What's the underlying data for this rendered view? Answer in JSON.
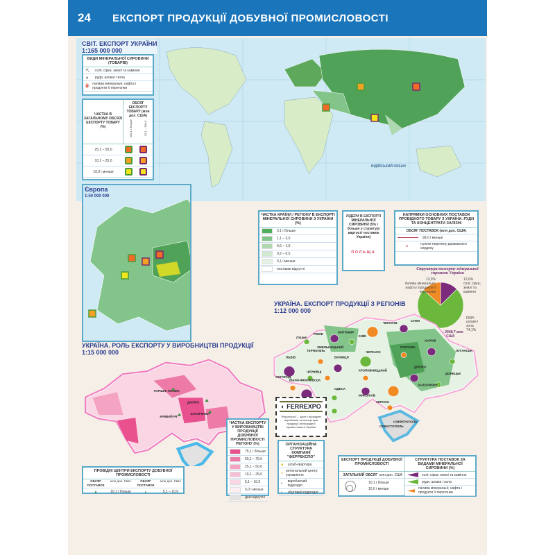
{
  "header": {
    "page_number": "24",
    "title": "ЕКСПОРТ ПРОДУКЦІЇ ДОБУВНОЇ ПРОМИСЛОВОСТІ"
  },
  "world_map": {
    "title": "СВІТ. ЕКСПОРТ УКРАЇНИ",
    "scale": "1:165 000 000",
    "ocean_label": "ІНДІЙСЬКИЙ ОКЕАН",
    "legend_types": {
      "title": "ВИДИ МІНЕРАЛЬНОЇ СИРОВИНИ (ТОВАРІВ)",
      "items": [
        "солі; сірка; землі та каміння",
        "руди, шлаки і зола",
        "палива мінеральні; нафта і продукти її перегонки"
      ]
    },
    "legend_share": {
      "title": "ЧАСТКА В ЗАГАЛЬНОМУ ОБСЯЗІ ЕКСПОРТУ ТОВАРУ (%)",
      "volume_title": "ОБСЯГ ЕКСПОРТУ ТОВАРУ (млн дол. США)",
      "volume_cols": [
        "100,1 і більше",
        "10,1 – 100,0"
      ],
      "rows": [
        "25,1 – 50,0",
        "10,1 – 25,0",
        "10,0 і менше"
      ],
      "colors": [
        "#f06a28",
        "#f5a023",
        "#f3e61c"
      ],
      "border_colors": [
        "#4a9a3a",
        "#7a2a6a"
      ]
    }
  },
  "europe_map": {
    "title": "Європа",
    "scale": "1:50 000 000"
  },
  "legend_country_share": {
    "title": "ЧАСТКА КРАЇНИ / РЕГІОНУ В ЕКСПОРТІ МІНЕРАЛЬНОЇ СИРОВИНИ З УКРАЇНИ (%)",
    "items": [
      {
        "label": "3,1 і більше",
        "color": "#4fae5c"
      },
      {
        "label": "1,1 – 3,0",
        "color": "#82c48a"
      },
      {
        "label": "0,6 – 1,0",
        "color": "#aed8b0"
      },
      {
        "label": "0,2 – 0,5",
        "color": "#cfe8cf"
      },
      {
        "label": "0,1 і менше",
        "color": "#e6f3e4"
      },
      {
        "label": "поставки відсутні",
        "color": "#ffffff"
      }
    ]
  },
  "legend_leaders": {
    "title": "ЛІДЕРИ В ЕКСПОРТІ МІНЕРАЛЬНОЇ СИРОВИНИ (5% і більше у структурі вартості поставок України)",
    "example": "ПОЛЬЩА"
  },
  "legend_directions": {
    "title": "НАПРЯМКИ ОСНОВНИХ ПОСТАВОК ПРОВІДНОГО ТОВАРУ З УКРАЇНИ. РУДИ ТА КОНЦЕНТРАТИ ЗАЛІЗНІ",
    "volume_title": "ОБСЯГ ПОСТАВОК (млн дол. США)",
    "items": [
      "99,0 і менше",
      "пункти перетину державного кордону"
    ]
  },
  "chart_data": {
    "type": "pie",
    "title": "Структура експорту мінеральної сировини України",
    "total": "всього – 2548,7 млн дол. США",
    "slices": [
      {
        "label": "руди, шлаки і зола",
        "value": 74.1,
        "value_label": "74,1%",
        "color": "#6cb83c"
      },
      {
        "label": "солі; сірка; землі та каміння",
        "value": 12.6,
        "value_label": "12,6%",
        "color": "#7b2a7c"
      },
      {
        "label": "палива мінеральні; нафта і продукти її перегонки",
        "value": 13.3,
        "value_label": "13,3%",
        "color": "#f08a24"
      }
    ]
  },
  "ukraine_regions_map": {
    "title": "УКРАЇНА. ЕКСПОРТ ПРОДУКЦІЇ З РЕГІОНІВ",
    "scale": "1:12 000 000",
    "cities": [
      "ЛУЦЬК",
      "РІВНЕ",
      "ЖИТОМИР",
      "КИЇВ",
      "ЧЕРНІГІВ",
      "СУМИ",
      "ЛЬВІВ",
      "ТЕРНОПІЛЬ",
      "ХМЕЛЬНИЦЬКИЙ",
      "ВІННИЦЯ",
      "ЧЕРКАСИ",
      "ПОЛТАВА",
      "ХАРКІВ",
      "ЛУГАНСЬК",
      "УЖГОРОД",
      "ІВАНО-ФРАНКІВСЬК",
      "ЧЕРНІВЦІ",
      "КРОПИВНИЦЬКИЙ",
      "ДНІПРО",
      "ДОНЕЦЬК",
      "ЗАПОРІЖЖЯ",
      "МИКОЛАЇВ",
      "ОДЕСА",
      "ХЕРСОН",
      "СІМФЕРОПОЛЬ",
      "СЕВАСТОПОЛЬ"
    ]
  },
  "ferrexpo": {
    "logo": "FERREXPO",
    "text": "\"Феррекспо\" – один з провідних виробників та експортерів продукції залізорудної промисловості України"
  },
  "org_structure": {
    "title": "ОРГАНІЗАЦІЙНА СТРУКТУРА КОМПАНІЇ \"ФЕРРЕКСПО\"",
    "items": [
      "штаб-квартира",
      "регіональний центр управління",
      "виробничий підрозділ",
      "збутовий підрозділ"
    ]
  },
  "legend_export_volume": {
    "title": "ЕКСПОРТ ПРОДУКЦІЇ ДОБУВНОЇ ПРОМИСЛОВОСТІ",
    "total_label": "ЗАГАЛЬНИЙ ОБСЯГ",
    "unit": "млн дол. США",
    "items": [
      "10,1 і більше",
      "10,0 і менше"
    ]
  },
  "legend_supply_structure": {
    "title": "СТРУКТУРА ПОСТАВОК ЗА ВИДАМИ МІНЕРАЛЬНОЇ СИРОВИНИ (%)",
    "items": [
      {
        "label": "солі; сірка; землі та каміння",
        "color": "#7b2a7c"
      },
      {
        "label": "руди, шлаки і зола",
        "color": "#6cb83c"
      },
      {
        "label": "палива мінеральні; нафта і продукти її перегонки",
        "color": "#f08a24"
      }
    ]
  },
  "ukraine_role_map": {
    "title": "УКРАЇНА. РОЛЬ ЕКСПОРТУ У ВИРОБНИЦТВІ ПРОДУКЦІЇ",
    "scale": "1:15 000 000",
    "cities": [
      "ГОРІШНІ ПЛАВНІ",
      "ДНІПРО",
      "КРИВИЙ РІГ",
      "ЗАПОРІЖЖЯ"
    ]
  },
  "legend_production_share": {
    "title": "ЧАСТКА ЕКСПОРТУ У ВИРОБНИЦТВІ ПРОДУКЦІЇ ДОБУВНОЇ ПРОМИСЛОВОСТІ РЕГІОНУ (%)",
    "items": [
      {
        "label": "75,1 і більше",
        "color": "#e8508e"
      },
      {
        "label": "50,1 – 75,0",
        "color": "#ee7aa8"
      },
      {
        "label": "25,1 – 50,0",
        "color": "#f4a3c3"
      },
      {
        "label": "10,1 – 25,0",
        "color": "#f7bfd5"
      },
      {
        "label": "5,1 – 10,0",
        "color": "#fad6e4"
      },
      {
        "label": "5,0 і менше",
        "color": "#fdeef4"
      },
      {
        "label": "дані відсутні",
        "color": "#e2e2e2"
      }
    ]
  },
  "legend_centers": {
    "title": "ПРОВІДНІ ЦЕНТРИ ЕКСПОРТУ ДОБУВНОЇ ПРОМИСЛОВОСТІ",
    "col_volume": "ОБСЯГ ПОСТАВОК",
    "col_unit": "млн дол. США",
    "items": [
      "10,1 і більше",
      "5,1 – 10,0"
    ]
  }
}
